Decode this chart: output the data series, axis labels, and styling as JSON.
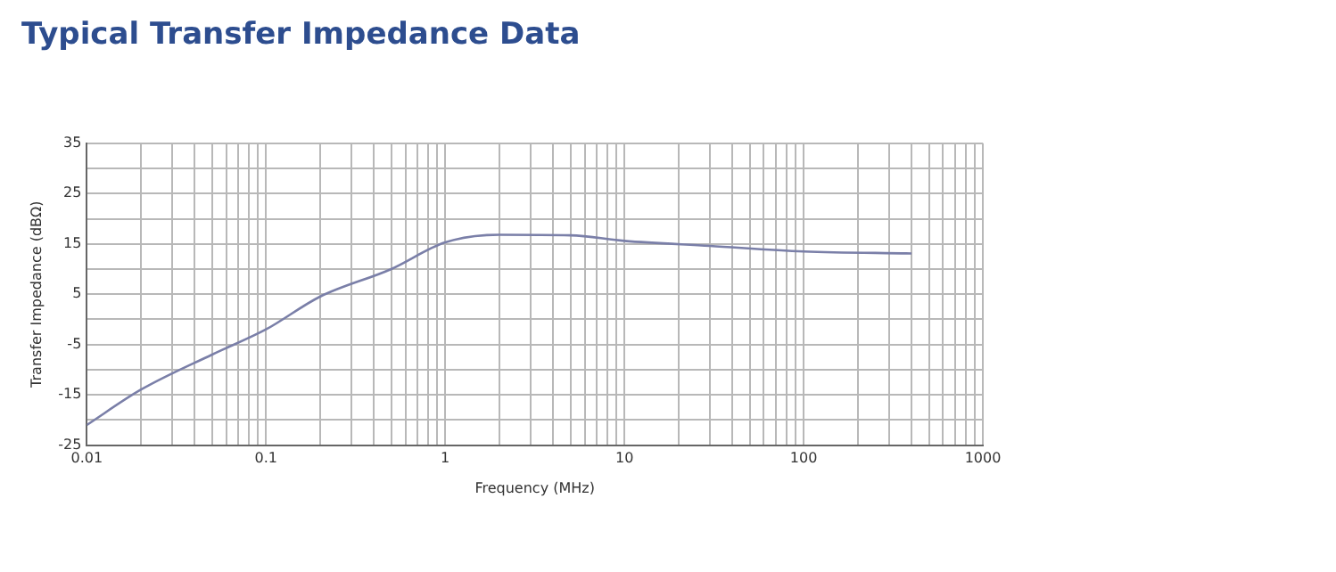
{
  "chart_data": {
    "type": "line",
    "title": "Typical Transfer Impedance Data",
    "xlabel": "Frequency (MHz)",
    "ylabel": "Transfer Impedance (dBΩ)",
    "log": "x",
    "grid": true,
    "legend": false,
    "marker": "none",
    "line_style": "solid",
    "xlim": [
      0.01,
      1000
    ],
    "xticks": [
      0.01,
      {
        "value": 0.02,
        "label": null
      },
      {
        "value": 0.03,
        "label": null
      },
      {
        "value": 0.04,
        "label": null
      },
      {
        "value": 0.05,
        "label": null
      },
      {
        "value": 0.06,
        "label": null
      },
      {
        "value": 0.07,
        "label": null
      },
      {
        "value": 0.08,
        "label": null
      },
      {
        "value": 0.09,
        "label": null
      },
      0.1,
      {
        "value": 0.2,
        "label": null
      },
      {
        "value": 0.3,
        "label": null
      },
      {
        "value": 0.4,
        "label": null
      },
      {
        "value": 0.5,
        "label": null
      },
      {
        "value": 0.6,
        "label": null
      },
      {
        "value": 0.7,
        "label": null
      },
      {
        "value": 0.8,
        "label": null
      },
      {
        "value": 0.9,
        "label": null
      },
      1,
      {
        "value": 2,
        "label": null
      },
      {
        "value": 3,
        "label": null
      },
      {
        "value": 4,
        "label": null
      },
      {
        "value": 5,
        "label": null
      },
      {
        "value": 6,
        "label": null
      },
      {
        "value": 7,
        "label": null
      },
      {
        "value": 8,
        "label": null
      },
      {
        "value": 9,
        "label": null
      },
      10,
      {
        "value": 20,
        "label": null
      },
      {
        "value": 30,
        "label": null
      },
      {
        "value": 40,
        "label": null
      },
      {
        "value": 50,
        "label": null
      },
      {
        "value": 60,
        "label": null
      },
      {
        "value": 70,
        "label": null
      },
      {
        "value": 80,
        "label": null
      },
      {
        "value": 90,
        "label": null
      },
      100,
      {
        "value": 200,
        "label": null
      },
      {
        "value": 300,
        "label": null
      },
      {
        "value": 400,
        "label": null
      },
      {
        "value": 500,
        "label": null
      },
      {
        "value": 600,
        "label": null
      },
      {
        "value": 700,
        "label": null
      },
      {
        "value": 800,
        "label": null
      },
      {
        "value": 900,
        "label": null
      },
      1000
    ],
    "ylim": [
      -25,
      35
    ],
    "yticks": [
      -25,
      {
        "value": -20,
        "label": null
      },
      -15,
      {
        "value": -10,
        "label": null
      },
      -5,
      {
        "value": 0,
        "label": null
      },
      5,
      {
        "value": 10,
        "label": null
      },
      15,
      {
        "value": 20,
        "label": null
      },
      25,
      {
        "value": 30,
        "label": null
      },
      35
    ],
    "series": [
      {
        "color": "#7a7fa8",
        "x": [
          0.01,
          0.02,
          0.05,
          0.1,
          0.2,
          0.5,
          1,
          2,
          5,
          10,
          30,
          100,
          400
        ],
        "values": [
          -21,
          -14,
          -7,
          -2,
          4.5,
          10,
          15.3,
          16.8,
          16.7,
          15.6,
          14.6,
          13.5,
          13.1
        ]
      }
    ]
  }
}
